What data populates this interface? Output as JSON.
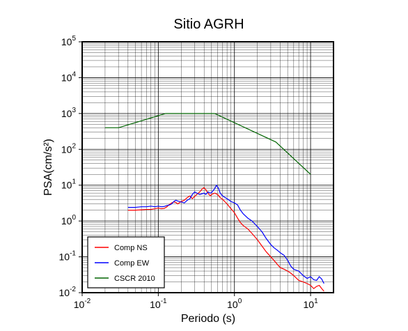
{
  "chart_data": {
    "type": "line",
    "title": "Sitio AGRH",
    "xlabel": "Periodo (s)",
    "ylabel": "PSA(cm/s²)",
    "xscale": "log",
    "yscale": "log",
    "xlim": [
      0.01,
      20
    ],
    "ylim": [
      0.01,
      100000
    ],
    "grid": true,
    "legend_position": "bottom-left",
    "x_ticks": [
      {
        "value": 0.01,
        "base": "10",
        "exp": "-2"
      },
      {
        "value": 0.1,
        "base": "10",
        "exp": "-1"
      },
      {
        "value": 1,
        "base": "10",
        "exp": "0"
      },
      {
        "value": 10,
        "base": "10",
        "exp": "1"
      }
    ],
    "y_ticks": [
      {
        "value": 0.01,
        "base": "10",
        "exp": "-2"
      },
      {
        "value": 0.1,
        "base": "10",
        "exp": "-1"
      },
      {
        "value": 1,
        "base": "10",
        "exp": "0"
      },
      {
        "value": 10,
        "base": "10",
        "exp": "1"
      },
      {
        "value": 100,
        "base": "10",
        "exp": "2"
      },
      {
        "value": 1000,
        "base": "10",
        "exp": "3"
      },
      {
        "value": 10000,
        "base": "10",
        "exp": "4"
      },
      {
        "value": 100000,
        "base": "10",
        "exp": "5"
      }
    ],
    "series": [
      {
        "name": "Comp NS",
        "color": "#ff0000",
        "points": [
          [
            0.04,
            2.0
          ],
          [
            0.05,
            2.0
          ],
          [
            0.06,
            2.05
          ],
          [
            0.07,
            2.1
          ],
          [
            0.08,
            2.1
          ],
          [
            0.09,
            2.2
          ],
          [
            0.1,
            2.3
          ],
          [
            0.11,
            2.2
          ],
          [
            0.12,
            2.25
          ],
          [
            0.13,
            2.5
          ],
          [
            0.14,
            2.9
          ],
          [
            0.15,
            3.2
          ],
          [
            0.16,
            3.4
          ],
          [
            0.17,
            3.3
          ],
          [
            0.18,
            3.0
          ],
          [
            0.2,
            3.5
          ],
          [
            0.22,
            3.8
          ],
          [
            0.24,
            4.5
          ],
          [
            0.26,
            5.0
          ],
          [
            0.28,
            4.2
          ],
          [
            0.3,
            4.8
          ],
          [
            0.32,
            5.5
          ],
          [
            0.35,
            6.5
          ],
          [
            0.38,
            8.0
          ],
          [
            0.4,
            8.5
          ],
          [
            0.42,
            7.5
          ],
          [
            0.45,
            6.0
          ],
          [
            0.48,
            5.0
          ],
          [
            0.5,
            5.5
          ],
          [
            0.55,
            6.0
          ],
          [
            0.6,
            5.5
          ],
          [
            0.65,
            4.5
          ],
          [
            0.7,
            4.0
          ],
          [
            0.8,
            3.0
          ],
          [
            0.9,
            2.2
          ],
          [
            1.0,
            1.7
          ],
          [
            1.1,
            1.2
          ],
          [
            1.2,
            0.9
          ],
          [
            1.3,
            0.75
          ],
          [
            1.5,
            0.6
          ],
          [
            1.7,
            0.45
          ],
          [
            2.0,
            0.3
          ],
          [
            2.3,
            0.2
          ],
          [
            2.6,
            0.14
          ],
          [
            3.0,
            0.1
          ],
          [
            3.3,
            0.08
          ],
          [
            3.7,
            0.06
          ],
          [
            4.0,
            0.05
          ],
          [
            4.5,
            0.045
          ],
          [
            5.0,
            0.04
          ],
          [
            5.5,
            0.035
          ],
          [
            6.0,
            0.03
          ],
          [
            7.0,
            0.022
          ],
          [
            8.0,
            0.02
          ],
          [
            9.0,
            0.018
          ],
          [
            10.0,
            0.016
          ],
          [
            11.0,
            0.013
          ],
          [
            12.0,
            0.015
          ],
          [
            13.0,
            0.016
          ],
          [
            14.0,
            0.013
          ],
          [
            15.0,
            0.011
          ]
        ]
      },
      {
        "name": "Comp EW",
        "color": "#0000ff",
        "points": [
          [
            0.04,
            2.4
          ],
          [
            0.05,
            2.4
          ],
          [
            0.06,
            2.5
          ],
          [
            0.07,
            2.5
          ],
          [
            0.08,
            2.6
          ],
          [
            0.09,
            2.5
          ],
          [
            0.1,
            2.6
          ],
          [
            0.11,
            2.5
          ],
          [
            0.12,
            2.55
          ],
          [
            0.13,
            2.7
          ],
          [
            0.14,
            2.8
          ],
          [
            0.15,
            3.0
          ],
          [
            0.16,
            3.5
          ],
          [
            0.17,
            3.8
          ],
          [
            0.18,
            3.6
          ],
          [
            0.2,
            3.4
          ],
          [
            0.22,
            3.2
          ],
          [
            0.24,
            3.8
          ],
          [
            0.26,
            4.2
          ],
          [
            0.28,
            5.5
          ],
          [
            0.3,
            6.5
          ],
          [
            0.32,
            6.0
          ],
          [
            0.35,
            5.5
          ],
          [
            0.38,
            5.8
          ],
          [
            0.4,
            6.0
          ],
          [
            0.42,
            5.5
          ],
          [
            0.45,
            6.5
          ],
          [
            0.48,
            6.0
          ],
          [
            0.5,
            6.2
          ],
          [
            0.55,
            8.0
          ],
          [
            0.58,
            10.0
          ],
          [
            0.62,
            8.0
          ],
          [
            0.65,
            6.0
          ],
          [
            0.7,
            5.0
          ],
          [
            0.8,
            4.2
          ],
          [
            0.9,
            3.5
          ],
          [
            1.0,
            3.2
          ],
          [
            1.1,
            2.8
          ],
          [
            1.2,
            2.0
          ],
          [
            1.3,
            1.6
          ],
          [
            1.5,
            1.2
          ],
          [
            1.7,
            1.0
          ],
          [
            2.0,
            0.7
          ],
          [
            2.3,
            0.5
          ],
          [
            2.6,
            0.33
          ],
          [
            3.0,
            0.22
          ],
          [
            3.3,
            0.18
          ],
          [
            3.7,
            0.15
          ],
          [
            4.0,
            0.13
          ],
          [
            4.5,
            0.11
          ],
          [
            5.0,
            0.08
          ],
          [
            5.5,
            0.055
          ],
          [
            6.0,
            0.045
          ],
          [
            7.0,
            0.04
          ],
          [
            8.0,
            0.03
          ],
          [
            9.0,
            0.025
          ],
          [
            10.0,
            0.028
          ],
          [
            11.0,
            0.023
          ],
          [
            12.0,
            0.022
          ],
          [
            13.0,
            0.028
          ],
          [
            14.0,
            0.024
          ],
          [
            15.0,
            0.018
          ]
        ]
      },
      {
        "name": "CSCR 2010",
        "color": "#006400",
        "points": [
          [
            0.02,
            400
          ],
          [
            0.03,
            400
          ],
          [
            0.125,
            1000
          ],
          [
            0.55,
            1000
          ],
          [
            3.5,
            160
          ],
          [
            10.0,
            20
          ]
        ]
      }
    ]
  }
}
